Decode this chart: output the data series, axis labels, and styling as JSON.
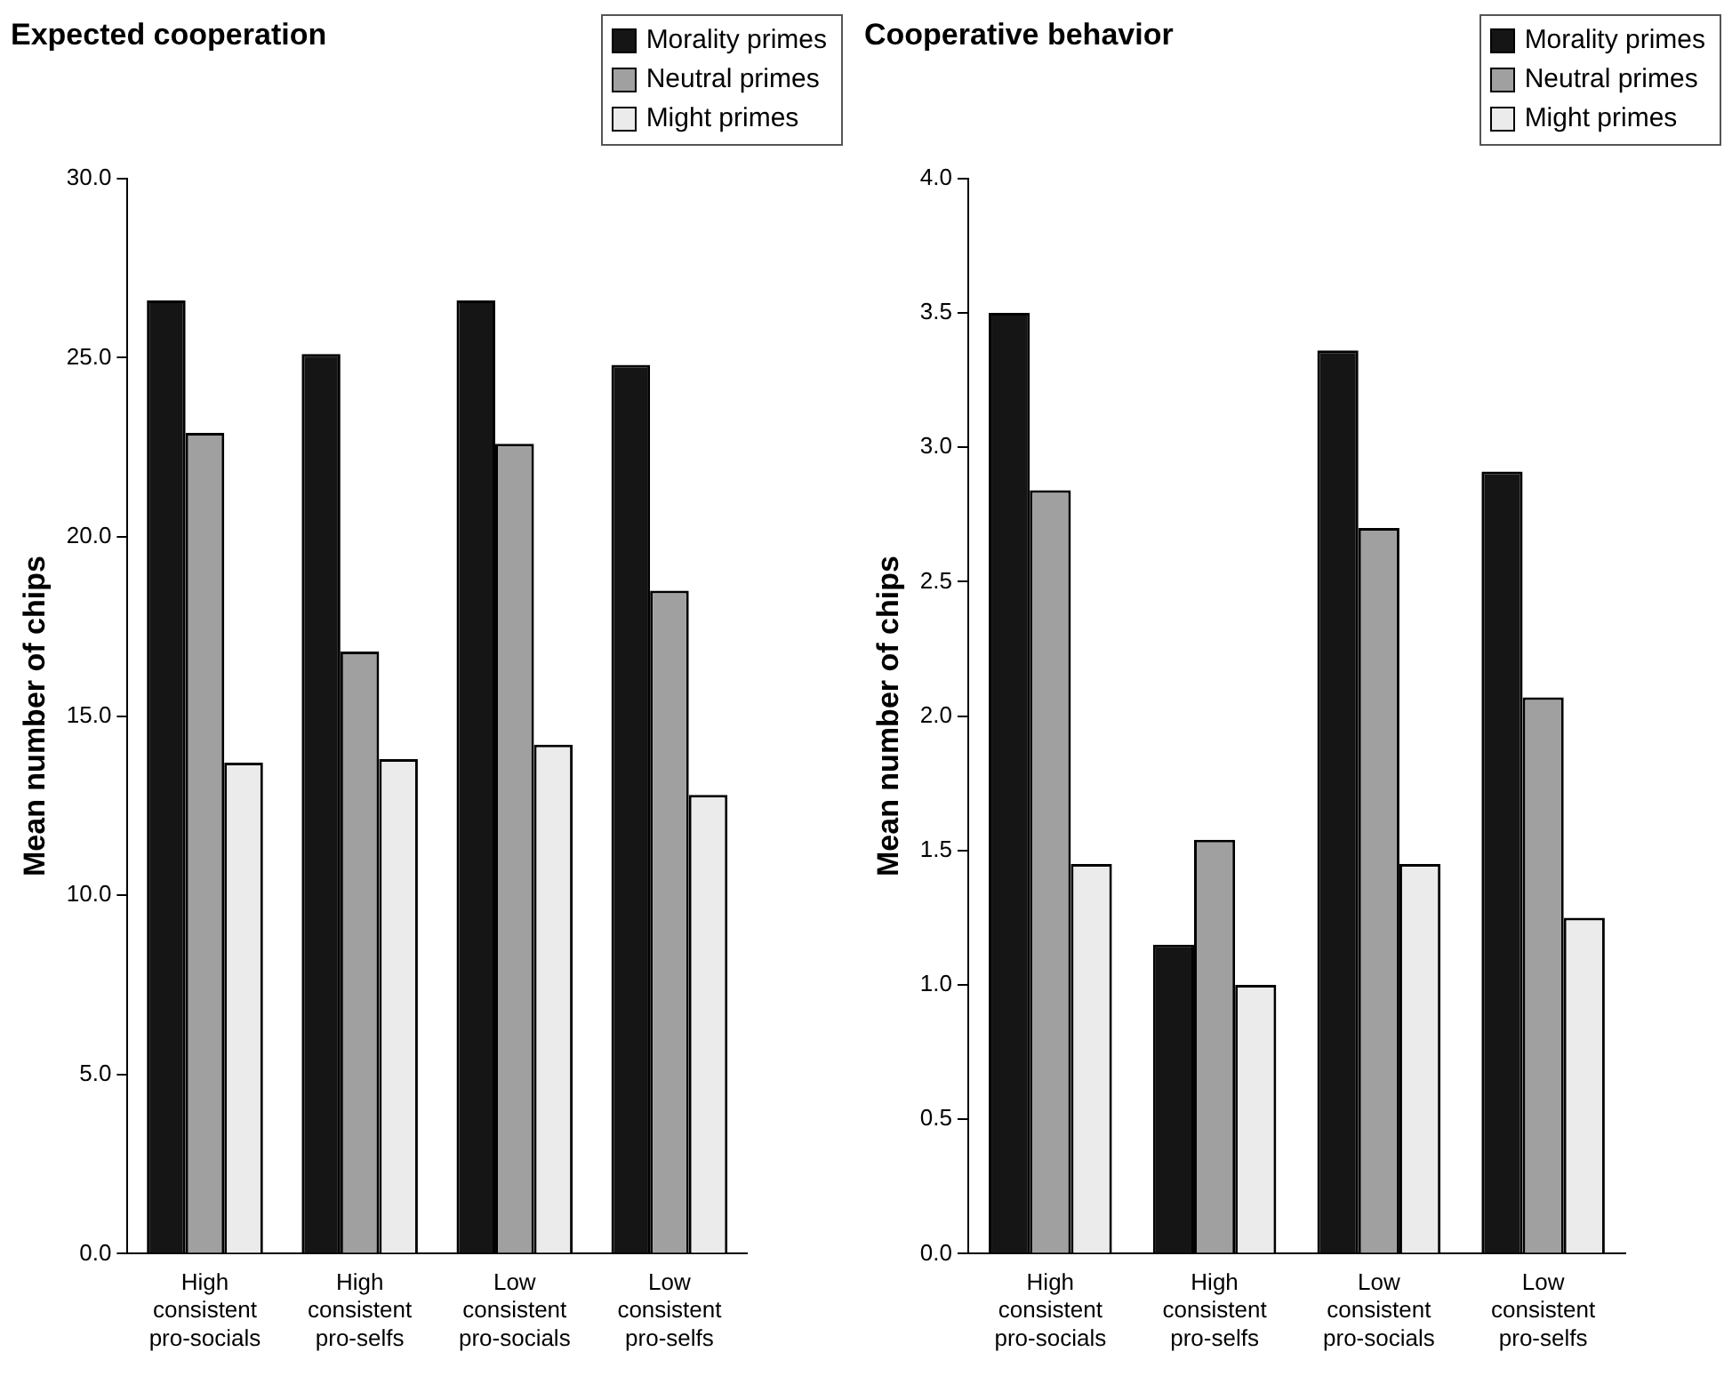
{
  "chart_data": [
    {
      "type": "bar",
      "title": "Expected cooperation",
      "ylabel": "Mean number of chips",
      "categories": [
        "High consistent pro-socials",
        "High consistent pro-selfs",
        "Low consistent pro-socials",
        "Low consistent pro-selfs"
      ],
      "series": [
        {
          "name": "Morality primes",
          "color": "#151515",
          "values": [
            26.6,
            25.1,
            26.6,
            24.8
          ]
        },
        {
          "name": "Neutral primes",
          "color": "#a0a0a0",
          "values": [
            22.9,
            16.8,
            22.6,
            18.5
          ]
        },
        {
          "name": "Might primes",
          "color": "#ebebeb",
          "values": [
            13.7,
            13.8,
            14.2,
            12.8
          ]
        }
      ],
      "ylim": [
        0,
        30
      ],
      "yticks": [
        {
          "value": 0,
          "label": "0.0"
        },
        {
          "value": 5,
          "label": "5.0"
        },
        {
          "value": 10,
          "label": "10.0"
        },
        {
          "value": 15,
          "label": "15.0"
        },
        {
          "value": 20,
          "label": "20.0"
        },
        {
          "value": 25,
          "label": "25.0"
        },
        {
          "value": 30,
          "label": "30.0"
        }
      ],
      "grid": false,
      "legend": "top right"
    },
    {
      "type": "bar",
      "title": "Cooperative behavior",
      "ylabel": "Mean number of chips",
      "categories": [
        "High consistent pro-socials",
        "High consistent pro-selfs",
        "Low consistent pro-socials",
        "Low consistent pro-selfs"
      ],
      "series": [
        {
          "name": "Morality primes",
          "color": "#151515",
          "values": [
            3.5,
            1.15,
            3.36,
            2.91
          ]
        },
        {
          "name": "Neutral primes",
          "color": "#a0a0a0",
          "values": [
            2.84,
            1.54,
            2.7,
            2.07
          ]
        },
        {
          "name": "Might primes",
          "color": "#ebebeb",
          "values": [
            1.45,
            1.0,
            1.45,
            1.25
          ]
        }
      ],
      "ylim": [
        0,
        4
      ],
      "yticks": [
        {
          "value": 0,
          "label": "0.0"
        },
        {
          "value": 0.5,
          "label": "0.5"
        },
        {
          "value": 1,
          "label": "1.0"
        },
        {
          "value": 1.5,
          "label": "1.5"
        },
        {
          "value": 2,
          "label": "2.0"
        },
        {
          "value": 2.5,
          "label": "2.5"
        },
        {
          "value": 3,
          "label": "3.0"
        },
        {
          "value": 3.5,
          "label": "3.5"
        },
        {
          "value": 4,
          "label": "4.0"
        }
      ],
      "grid": false,
      "legend": "top right"
    }
  ]
}
